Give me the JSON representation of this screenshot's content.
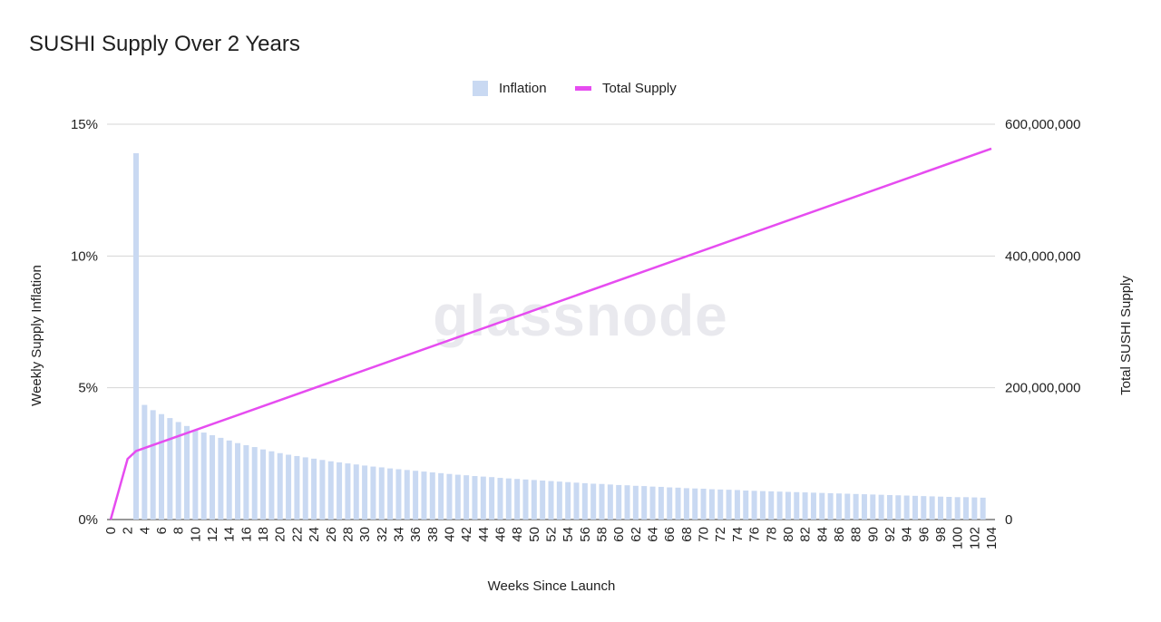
{
  "chart_data": {
    "type": "bar",
    "title": "SUSHI Supply Over 2 Years",
    "watermark": "glassnode",
    "xlabel": "Weeks Since Launch",
    "ylabel_left": "Weekly Supply Inflation",
    "ylabel_right": "Total SUSHI Supply",
    "x_ticks": [
      "0",
      "2",
      "4",
      "6",
      "8",
      "10",
      "12",
      "14",
      "16",
      "18",
      "20",
      "22",
      "24",
      "26",
      "28",
      "30",
      "32",
      "34",
      "36",
      "38",
      "40",
      "42",
      "44",
      "46",
      "48",
      "50",
      "52",
      "54",
      "56",
      "58",
      "60",
      "62",
      "64",
      "66",
      "68",
      "70",
      "72",
      "74",
      "76",
      "78",
      "80",
      "82",
      "84",
      "86",
      "88",
      "90",
      "92",
      "94",
      "96",
      "98",
      "100",
      "102",
      "104"
    ],
    "left_ticks": [
      "0%",
      "5%",
      "10%",
      "15%"
    ],
    "left_ylim": [
      0,
      15
    ],
    "right_ticks": [
      "0",
      "200,000,000",
      "400,000,000",
      "600,000,000"
    ],
    "right_ylim": [
      0,
      600000000
    ],
    "legend_position": "top-center",
    "grid": true,
    "colors": {
      "inflation": "#c9d9f2",
      "total_supply": "#e64cf0",
      "grid": "#d5d5d5"
    },
    "series": [
      {
        "name": "Inflation",
        "type": "bar",
        "axis": "left",
        "unit": "percent",
        "x": [
          3,
          4,
          5,
          6,
          7,
          8,
          9,
          10,
          11,
          12,
          13,
          14,
          15,
          16,
          17,
          18,
          19,
          20,
          21,
          22,
          23,
          24,
          25,
          26,
          27,
          28,
          29,
          30,
          31,
          32,
          33,
          34,
          35,
          36,
          37,
          38,
          39,
          40,
          41,
          42,
          43,
          44,
          45,
          46,
          47,
          48,
          49,
          50,
          51,
          52,
          53,
          54,
          55,
          56,
          57,
          58,
          59,
          60,
          61,
          62,
          63,
          64,
          65,
          66,
          67,
          68,
          69,
          70,
          71,
          72,
          73,
          74,
          75,
          76,
          77,
          78,
          79,
          80,
          81,
          82,
          83,
          84,
          85,
          86,
          87,
          88,
          89,
          90,
          91,
          92,
          93,
          94,
          95,
          96,
          97,
          98,
          99,
          100,
          101,
          102,
          103
        ],
        "values": [
          13.9,
          4.35,
          4.15,
          4.0,
          3.85,
          3.7,
          3.55,
          3.4,
          3.3,
          3.2,
          3.1,
          3.0,
          2.9,
          2.82,
          2.75,
          2.66,
          2.59,
          2.52,
          2.46,
          2.41,
          2.36,
          2.31,
          2.26,
          2.21,
          2.17,
          2.13,
          2.09,
          2.05,
          2.01,
          1.98,
          1.94,
          1.91,
          1.88,
          1.85,
          1.82,
          1.79,
          1.76,
          1.73,
          1.7,
          1.68,
          1.65,
          1.63,
          1.61,
          1.58,
          1.56,
          1.54,
          1.52,
          1.5,
          1.48,
          1.46,
          1.44,
          1.42,
          1.4,
          1.38,
          1.36,
          1.35,
          1.33,
          1.31,
          1.3,
          1.28,
          1.27,
          1.25,
          1.24,
          1.22,
          1.21,
          1.19,
          1.18,
          1.17,
          1.15,
          1.14,
          1.13,
          1.12,
          1.1,
          1.09,
          1.08,
          1.07,
          1.06,
          1.05,
          1.04,
          1.03,
          1.02,
          1.01,
          1.0,
          0.99,
          0.98,
          0.97,
          0.96,
          0.95,
          0.94,
          0.93,
          0.92,
          0.91,
          0.9,
          0.89,
          0.88,
          0.87,
          0.86,
          0.85,
          0.85,
          0.84,
          0.83
        ]
      },
      {
        "name": "Total Supply",
        "type": "line",
        "axis": "right",
        "x": [
          0,
          2,
          3,
          104
        ],
        "values": [
          0,
          92000000,
          104000000,
          563000000
        ]
      }
    ]
  }
}
